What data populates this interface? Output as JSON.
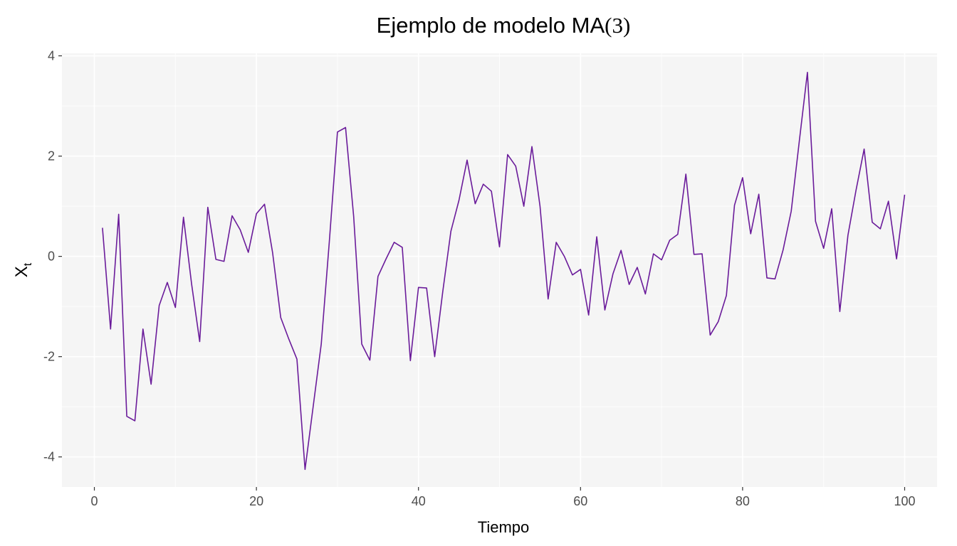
{
  "chart_data": {
    "type": "line",
    "title_text": "Ejemplo de modelo MA",
    "title_paren": "(3)",
    "xlabel": "Tiempo",
    "ylabel_main": "X",
    "ylabel_sub": "t",
    "xlim": [
      -4,
      104
    ],
    "ylim": [
      -4.6,
      4.05
    ],
    "x_ticks": [
      0,
      20,
      40,
      60,
      80,
      100
    ],
    "x_tick_labels": [
      "0",
      "20",
      "40",
      "60",
      "80",
      "100"
    ],
    "y_ticks": [
      -4,
      -2,
      0,
      2,
      4
    ],
    "y_tick_labels": [
      "-4",
      "-2",
      "0",
      "2",
      "4"
    ],
    "grid": true,
    "line_color": "#6a1b9a",
    "panel_color": "#f5f5f5",
    "grid_color": "#ffffff",
    "series": [
      {
        "x": [
          1,
          2,
          3,
          4,
          5,
          6,
          7,
          8,
          9,
          10,
          11,
          12,
          13,
          14,
          15,
          16,
          17,
          18,
          19,
          20,
          21,
          22,
          23,
          24,
          25,
          26,
          27,
          28,
          29,
          30,
          31,
          32,
          33,
          34,
          35,
          36,
          37,
          38,
          39,
          40,
          41,
          42,
          43,
          44,
          45,
          46,
          47,
          48,
          49,
          50,
          51,
          52,
          53,
          54,
          55,
          56,
          57,
          58,
          59,
          60,
          61,
          62,
          63,
          64,
          65,
          66,
          67,
          68,
          69,
          70,
          71,
          72,
          73,
          74,
          75,
          76,
          77,
          78,
          79,
          80,
          81,
          82,
          83,
          84,
          85,
          86,
          87,
          88,
          89,
          90,
          91,
          92,
          93,
          94,
          95,
          96,
          97,
          98,
          99,
          100
        ],
        "values": [
          0.57,
          -1.45,
          0.84,
          -3.19,
          -3.28,
          -1.45,
          -2.55,
          -0.98,
          -0.52,
          -1.02,
          0.78,
          -0.55,
          -1.7,
          0.98,
          -0.06,
          -0.1,
          0.81,
          0.53,
          0.08,
          0.85,
          1.04,
          0.07,
          -1.22,
          -1.65,
          -2.05,
          -4.25,
          -3.0,
          -1.75,
          0.3,
          2.48,
          2.57,
          0.8,
          -1.75,
          -2.07,
          -0.4,
          -0.05,
          0.28,
          0.18,
          -2.08,
          -0.62,
          -0.63,
          -2.0,
          -0.7,
          0.5,
          1.12,
          1.92,
          1.05,
          1.44,
          1.3,
          0.19,
          2.03,
          1.8,
          1.0,
          2.19,
          1.0,
          -0.85,
          0.28,
          0.0,
          -0.37,
          -0.26,
          -1.17,
          0.39,
          -1.07,
          -0.35,
          0.12,
          -0.56,
          -0.22,
          -0.75,
          0.05,
          -0.07,
          0.32,
          0.44,
          1.64,
          0.04,
          0.05,
          -1.57,
          -1.3,
          -0.78,
          1.02,
          1.57,
          0.45,
          1.24,
          -0.43,
          -0.45,
          0.13,
          0.9,
          2.3,
          3.67,
          0.7,
          0.16,
          0.95,
          -1.1,
          0.42,
          1.32,
          2.14,
          0.68,
          0.55,
          1.1,
          -0.05,
          1.23
        ]
      }
    ]
  }
}
